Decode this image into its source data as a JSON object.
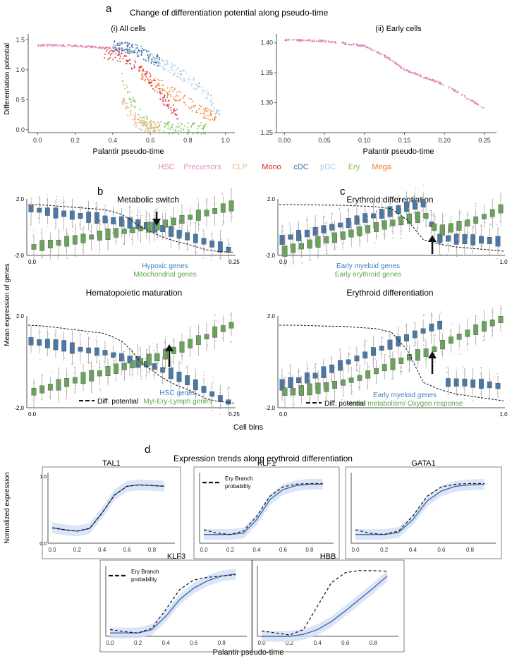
{
  "colors": {
    "HSC": "#e07fb6",
    "Precursors": "#e58fc3",
    "CLP": "#e8b88a",
    "Mono": "#d7242a",
    "cDC": "#3a6fa6",
    "pDC": "#a9cde7",
    "Ery": "#7fbf4a",
    "Mega": "#f07f2a",
    "blue_box": "#4a79a8",
    "green_box": "#6aa35a",
    "blue_text": "#3f7fbf",
    "green_text": "#5aa84a",
    "line": "#3f6fb5",
    "band": "#d2def3",
    "dashed": "#111111"
  },
  "panel_a": {
    "letter": "a",
    "title": "Change of differentiation potential along pseudo-time",
    "legend": [
      "HSC",
      "Precursors",
      "CLP",
      "Mono",
      "cDC",
      "pDC",
      "Ery",
      "Mega"
    ],
    "chart_data": [
      {
        "type": "scatter",
        "title": "(i) All cells",
        "xlabel": "Palantir pseudo-time",
        "ylabel": "Differentiation potential",
        "xlim": [
          -0.05,
          1.05
        ],
        "ylim": [
          -0.05,
          1.6
        ],
        "xticks": [
          "0.0",
          "0.2",
          "0.4",
          "0.6",
          "0.8",
          "1.0"
        ],
        "yticks": [
          "0.0",
          "0.5",
          "1.0",
          "1.5"
        ],
        "series": [
          {
            "name": "HSC",
            "x": [
              0.0,
              0.1,
              0.2,
              0.3,
              0.35,
              0.4,
              0.45
            ],
            "y": [
              1.41,
              1.41,
              1.4,
              1.38,
              1.37,
              1.36,
              1.35
            ]
          },
          {
            "name": "Mono",
            "x": [
              0.35,
              0.45,
              0.5,
              0.55,
              0.6,
              0.65,
              0.7,
              0.75
            ],
            "y": [
              1.3,
              1.2,
              1.1,
              1.0,
              0.85,
              0.6,
              0.4,
              0.25
            ]
          },
          {
            "name": "cDC",
            "x": [
              0.4,
              0.5,
              0.55,
              0.6,
              0.65
            ],
            "y": [
              1.4,
              1.35,
              1.3,
              1.2,
              1.15
            ]
          },
          {
            "name": "pDC",
            "x": [
              0.6,
              0.7,
              0.8,
              0.9,
              0.97
            ],
            "y": [
              1.2,
              1.05,
              0.85,
              0.6,
              0.3
            ]
          },
          {
            "name": "Ery",
            "x": [
              0.45,
              0.5,
              0.55,
              0.6,
              0.7,
              0.8,
              0.9
            ],
            "y": [
              0.9,
              0.5,
              0.2,
              0.08,
              0.03,
              0.02,
              0.02
            ]
          },
          {
            "name": "CLP",
            "x": [
              0.45,
              0.5,
              0.55,
              0.6,
              0.65
            ],
            "y": [
              0.5,
              0.2,
              0.08,
              0.04,
              0.03
            ]
          },
          {
            "name": "Mega",
            "x": [
              0.55,
              0.65,
              0.75,
              0.85,
              0.95
            ],
            "y": [
              0.95,
              0.75,
              0.55,
              0.35,
              0.2
            ]
          }
        ]
      },
      {
        "type": "scatter",
        "title": "(ii) Early cells",
        "xlabel": "Palantir pseudo-time",
        "xlim": [
          -0.01,
          0.265
        ],
        "ylim": [
          1.25,
          1.415
        ],
        "xticks": [
          "0.00",
          "0.05",
          "0.10",
          "0.15",
          "0.20",
          "0.25"
        ],
        "yticks": [
          "1.25",
          "1.30",
          "1.35",
          "1.40"
        ],
        "series": [
          {
            "name": "HSC",
            "x": [
              0.0,
              0.05,
              0.1,
              0.13,
              0.15,
              0.17,
              0.2,
              0.22,
              0.25
            ],
            "y": [
              1.405,
              1.403,
              1.395,
              1.375,
              1.355,
              1.345,
              1.33,
              1.315,
              1.29
            ]
          }
        ]
      }
    ]
  },
  "panel_b": {
    "letter": "b",
    "ylabel": "Mean expression of genes",
    "chart_data": [
      {
        "type": "box",
        "title": "Metabolic switch",
        "xticks": [
          "0.0",
          "0.25"
        ],
        "yticks": [
          "2.0",
          "-2.0"
        ],
        "ylim": [
          -2.0,
          2.0
        ],
        "legend": [
          "Hypoxic genes",
          "Mitochondrial genes"
        ],
        "series": [
          {
            "name": "Hypoxic genes",
            "values": [
              1.3,
              1.2,
              1.1,
              1.0,
              0.95,
              0.85,
              0.8,
              0.7,
              0.65,
              0.55,
              0.45,
              0.4,
              0.3,
              0.2,
              0.1,
              0.0,
              -0.1,
              -0.3,
              -0.5,
              -0.65,
              -0.8,
              -1.0,
              -1.2,
              -1.4,
              -1.6
            ]
          },
          {
            "name": "Mitochondrial genes",
            "values": [
              -1.4,
              -1.3,
              -1.2,
              -1.1,
              -1.0,
              -0.9,
              -0.8,
              -0.7,
              -0.6,
              -0.5,
              -0.4,
              -0.3,
              -0.2,
              -0.1,
              0.0,
              0.1,
              0.25,
              0.4,
              0.55,
              0.7,
              0.85,
              1.0,
              1.15,
              1.35,
              1.5
            ]
          },
          {
            "name": "Diff. potential",
            "values": [
              1.6,
              1.58,
              1.55,
              1.5,
              1.45,
              1.4,
              1.35,
              1.3,
              1.25,
              1.1,
              0.9,
              0.5,
              0.0,
              -0.3,
              -0.6,
              -0.85,
              -1.05,
              -1.2,
              -1.4,
              -1.6,
              -1.7,
              -1.75,
              -1.8
            ]
          }
        ]
      },
      {
        "type": "box",
        "title": "Hematopoietic maturation",
        "xticks": [
          "0.0",
          "0.25"
        ],
        "yticks": [
          "2.0",
          "-2.0"
        ],
        "ylim": [
          -2.0,
          2.0
        ],
        "legend": [
          "HSC genes",
          "Myl-Ery-Lymph genes"
        ],
        "dashed_label": "Diff. potential",
        "series": [
          {
            "name": "HSC genes",
            "values": [
              0.9,
              0.85,
              0.8,
              0.75,
              0.7,
              0.6,
              0.55,
              0.5,
              0.45,
              0.4,
              0.3,
              0.2,
              0.1,
              0.0,
              -0.1,
              -0.2,
              -0.35,
              -0.5,
              -0.65,
              -0.8,
              -1.0,
              -1.2,
              -1.4,
              -1.6,
              -1.75
            ]
          },
          {
            "name": "Myl-Ery-Lymph genes",
            "values": [
              -1.3,
              -1.2,
              -1.1,
              -1.0,
              -0.9,
              -0.8,
              -0.7,
              -0.6,
              -0.5,
              -0.4,
              -0.3,
              -0.2,
              -0.1,
              0.0,
              0.1,
              0.2,
              0.35,
              0.5,
              0.65,
              0.8,
              0.95,
              1.1,
              1.3,
              1.45,
              1.6
            ]
          },
          {
            "name": "Diff. potential",
            "values": [
              1.6,
              1.58,
              1.55,
              1.5,
              1.45,
              1.4,
              1.35,
              1.3,
              1.25,
              1.1,
              0.9,
              0.5,
              0.0,
              -0.3,
              -0.6,
              -0.85,
              -1.05,
              -1.2,
              -1.4,
              -1.6,
              -1.7,
              -1.75,
              -1.8
            ]
          }
        ]
      }
    ]
  },
  "panel_c": {
    "letter": "c",
    "xlabel": "Cell bins",
    "chart_data": [
      {
        "type": "box",
        "title": "Erythroid differentiation",
        "xticks": [
          "0.0",
          "1.0"
        ],
        "yticks": [
          "2.0",
          "-2.0"
        ],
        "ylim": [
          -2.0,
          2.0
        ],
        "legend": [
          "Early myeloid genes",
          "Early erythroid genes"
        ],
        "series": [
          {
            "name": "Early myeloid genes",
            "values": [
              -0.9,
              -0.7,
              -0.6,
              -0.45,
              -0.3,
              -0.15,
              0.0,
              0.15,
              0.3,
              0.5,
              0.65,
              0.8,
              0.95,
              1.1,
              1.25,
              1.45,
              1.6,
              1.7,
              0.2,
              -0.8,
              -0.8,
              -0.85,
              -0.85,
              -0.9,
              -0.9,
              -0.95,
              -1.0
            ]
          },
          {
            "name": "Early erythroid genes",
            "values": [
              -1.7,
              -1.5,
              -1.35,
              -1.2,
              -1.05,
              -0.9,
              -0.75,
              -0.6,
              -0.45,
              -0.3,
              -0.15,
              0.0,
              0.15,
              0.3,
              0.45,
              0.6,
              0.7,
              0.8,
              0.0,
              -0.2,
              -0.05,
              0.1,
              0.3,
              0.5,
              0.75,
              1.0,
              1.3
            ]
          },
          {
            "name": "Diff. potential",
            "values": [
              1.6,
              1.6,
              1.58,
              1.56,
              1.55,
              1.5,
              1.45,
              1.3,
              0.5,
              -0.9,
              -1.2,
              -1.4,
              -1.5,
              -1.6,
              -1.7
            ]
          }
        ]
      },
      {
        "type": "box",
        "title": "Erythroid differentiation",
        "xticks": [
          "0.0",
          "1.0"
        ],
        "yticks": [
          "2.0",
          "-2.0"
        ],
        "ylim": [
          -2.0,
          2.0
        ],
        "legend": [
          "Early myeloid genes",
          "Heme metabolism/ Oxygen response"
        ],
        "dashed_label": "Diff. potential",
        "series": [
          {
            "name": "Early myeloid genes",
            "values": [
              -1.0,
              -0.9,
              -0.8,
              -0.7,
              -0.6,
              -0.45,
              -0.3,
              -0.15,
              0.0,
              0.15,
              0.3,
              0.45,
              0.6,
              0.75,
              0.9,
              1.05,
              1.2,
              1.35,
              1.5,
              1.6,
              -0.9,
              -0.9,
              -0.9,
              -0.95,
              -0.95,
              -1.0,
              -1.05
            ]
          },
          {
            "name": "Heme metabolism/ Oxygen response",
            "values": [
              -1.3,
              -1.3,
              -1.25,
              -1.2,
              -1.15,
              -1.1,
              -1.0,
              -0.9,
              -0.8,
              -0.7,
              -0.55,
              -0.4,
              -0.25,
              -0.1,
              0.05,
              0.2,
              0.3,
              0.4,
              0.55,
              0.75,
              0.95,
              1.1,
              1.25,
              1.4,
              1.55,
              1.7,
              1.85
            ]
          },
          {
            "name": "Diff. potential",
            "values": [
              1.6,
              1.6,
              1.58,
              1.56,
              1.55,
              1.5,
              1.45,
              1.3,
              0.5,
              -0.9,
              -1.2,
              -1.4,
              -1.5,
              -1.6,
              -1.7
            ]
          }
        ]
      }
    ]
  },
  "panel_d": {
    "letter": "d",
    "title": "Expression trends along erythroid differentiation",
    "ylabel": "Normalized expression",
    "xlabel": "Palantir pseudo-time",
    "branch_label_1": "Ery Branch",
    "branch_label_2": "probability",
    "chart_data": [
      {
        "type": "line",
        "title": "TAL1",
        "ylim": [
          0.0,
          1.0
        ],
        "yticks": [
          "0.0",
          "1.0"
        ],
        "xticks": [
          "0.0",
          "0.2",
          "0.4",
          "0.6",
          "0.8"
        ],
        "x": [
          0.0,
          0.1,
          0.2,
          0.3,
          0.4,
          0.5,
          0.6,
          0.7,
          0.8,
          0.9
        ],
        "series": [
          {
            "name": "expression",
            "values": [
              0.23,
              0.2,
              0.18,
              0.22,
              0.45,
              0.72,
              0.85,
              0.87,
              0.86,
              0.85
            ]
          },
          {
            "name": "Ery Branch probability",
            "values": [
              0.23,
              0.2,
              0.18,
              0.22,
              0.45,
              0.72,
              0.85,
              0.87,
              0.86,
              0.85
            ]
          }
        ]
      },
      {
        "type": "line",
        "title": "KLF1",
        "ylim": [
          0.0,
          1.0
        ],
        "xticks": [
          "0.0",
          "0.2",
          "0.4",
          "0.6",
          "0.8"
        ],
        "x": [
          0.0,
          0.1,
          0.2,
          0.3,
          0.4,
          0.5,
          0.6,
          0.7,
          0.8,
          0.9
        ],
        "series": [
          {
            "name": "expression",
            "values": [
              0.13,
              0.13,
              0.13,
              0.15,
              0.35,
              0.65,
              0.8,
              0.86,
              0.88,
              0.88
            ]
          },
          {
            "name": "Ery Branch probability",
            "values": [
              0.2,
              0.15,
              0.13,
              0.18,
              0.4,
              0.7,
              0.84,
              0.88,
              0.89,
              0.89
            ]
          }
        ]
      },
      {
        "type": "line",
        "title": "GATA1",
        "ylim": [
          0.0,
          1.0
        ],
        "xticks": [
          "0.0",
          "0.2",
          "0.4",
          "0.6",
          "0.8"
        ],
        "x": [
          0.0,
          0.1,
          0.2,
          0.3,
          0.4,
          0.5,
          0.6,
          0.7,
          0.8,
          0.9
        ],
        "series": [
          {
            "name": "expression",
            "values": [
              0.13,
              0.13,
              0.13,
              0.16,
              0.35,
              0.63,
              0.78,
              0.85,
              0.87,
              0.88
            ]
          },
          {
            "name": "Ery Branch probability",
            "values": [
              0.2,
              0.15,
              0.13,
              0.18,
              0.4,
              0.7,
              0.84,
              0.88,
              0.89,
              0.89
            ]
          }
        ]
      },
      {
        "type": "line",
        "title": "KLF3",
        "ylim": [
          0.0,
          1.0
        ],
        "xticks": [
          "0.0",
          "0.2",
          "0.4",
          "0.6",
          "0.8"
        ],
        "x": [
          0.0,
          0.1,
          0.2,
          0.3,
          0.4,
          0.5,
          0.6,
          0.7,
          0.8,
          0.9
        ],
        "series": [
          {
            "name": "expression",
            "values": [
              0.05,
              0.05,
              0.05,
              0.1,
              0.3,
              0.55,
              0.72,
              0.83,
              0.9,
              0.93
            ]
          },
          {
            "name": "Ery Branch probability",
            "values": [
              0.1,
              0.07,
              0.05,
              0.12,
              0.4,
              0.7,
              0.84,
              0.88,
              0.9,
              0.92
            ]
          }
        ]
      },
      {
        "type": "line",
        "title": "HBB",
        "ylim": [
          0.0,
          1.0
        ],
        "xticks": [
          "0.0",
          "0.2",
          "0.4",
          "0.6",
          "0.8"
        ],
        "x": [
          0.0,
          0.1,
          0.2,
          0.3,
          0.4,
          0.5,
          0.6,
          0.7,
          0.8,
          0.9
        ],
        "series": [
          {
            "name": "expression",
            "values": [
              0.0,
              0.0,
              0.0,
              0.03,
              0.1,
              0.22,
              0.38,
              0.55,
              0.72,
              0.9
            ]
          },
          {
            "name": "Ery Branch probability",
            "values": [
              0.08,
              0.05,
              0.02,
              0.1,
              0.45,
              0.8,
              0.95,
              0.98,
              0.98,
              0.97
            ]
          }
        ]
      }
    ]
  }
}
